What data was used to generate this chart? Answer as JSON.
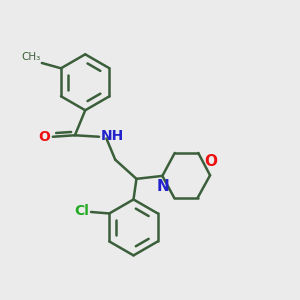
{
  "background_color": "#ebebeb",
  "bond_color": "#3a5f3a",
  "bond_width": 1.8,
  "atom_colors": {
    "O": "#ee1111",
    "N": "#2222cc",
    "Cl": "#22aa22",
    "C": "#3a5f3a",
    "H": "#666666"
  },
  "font_size": 10,
  "label_size": 9,
  "figsize": [
    3.0,
    3.0
  ],
  "dpi": 100,
  "scale": 0.72
}
